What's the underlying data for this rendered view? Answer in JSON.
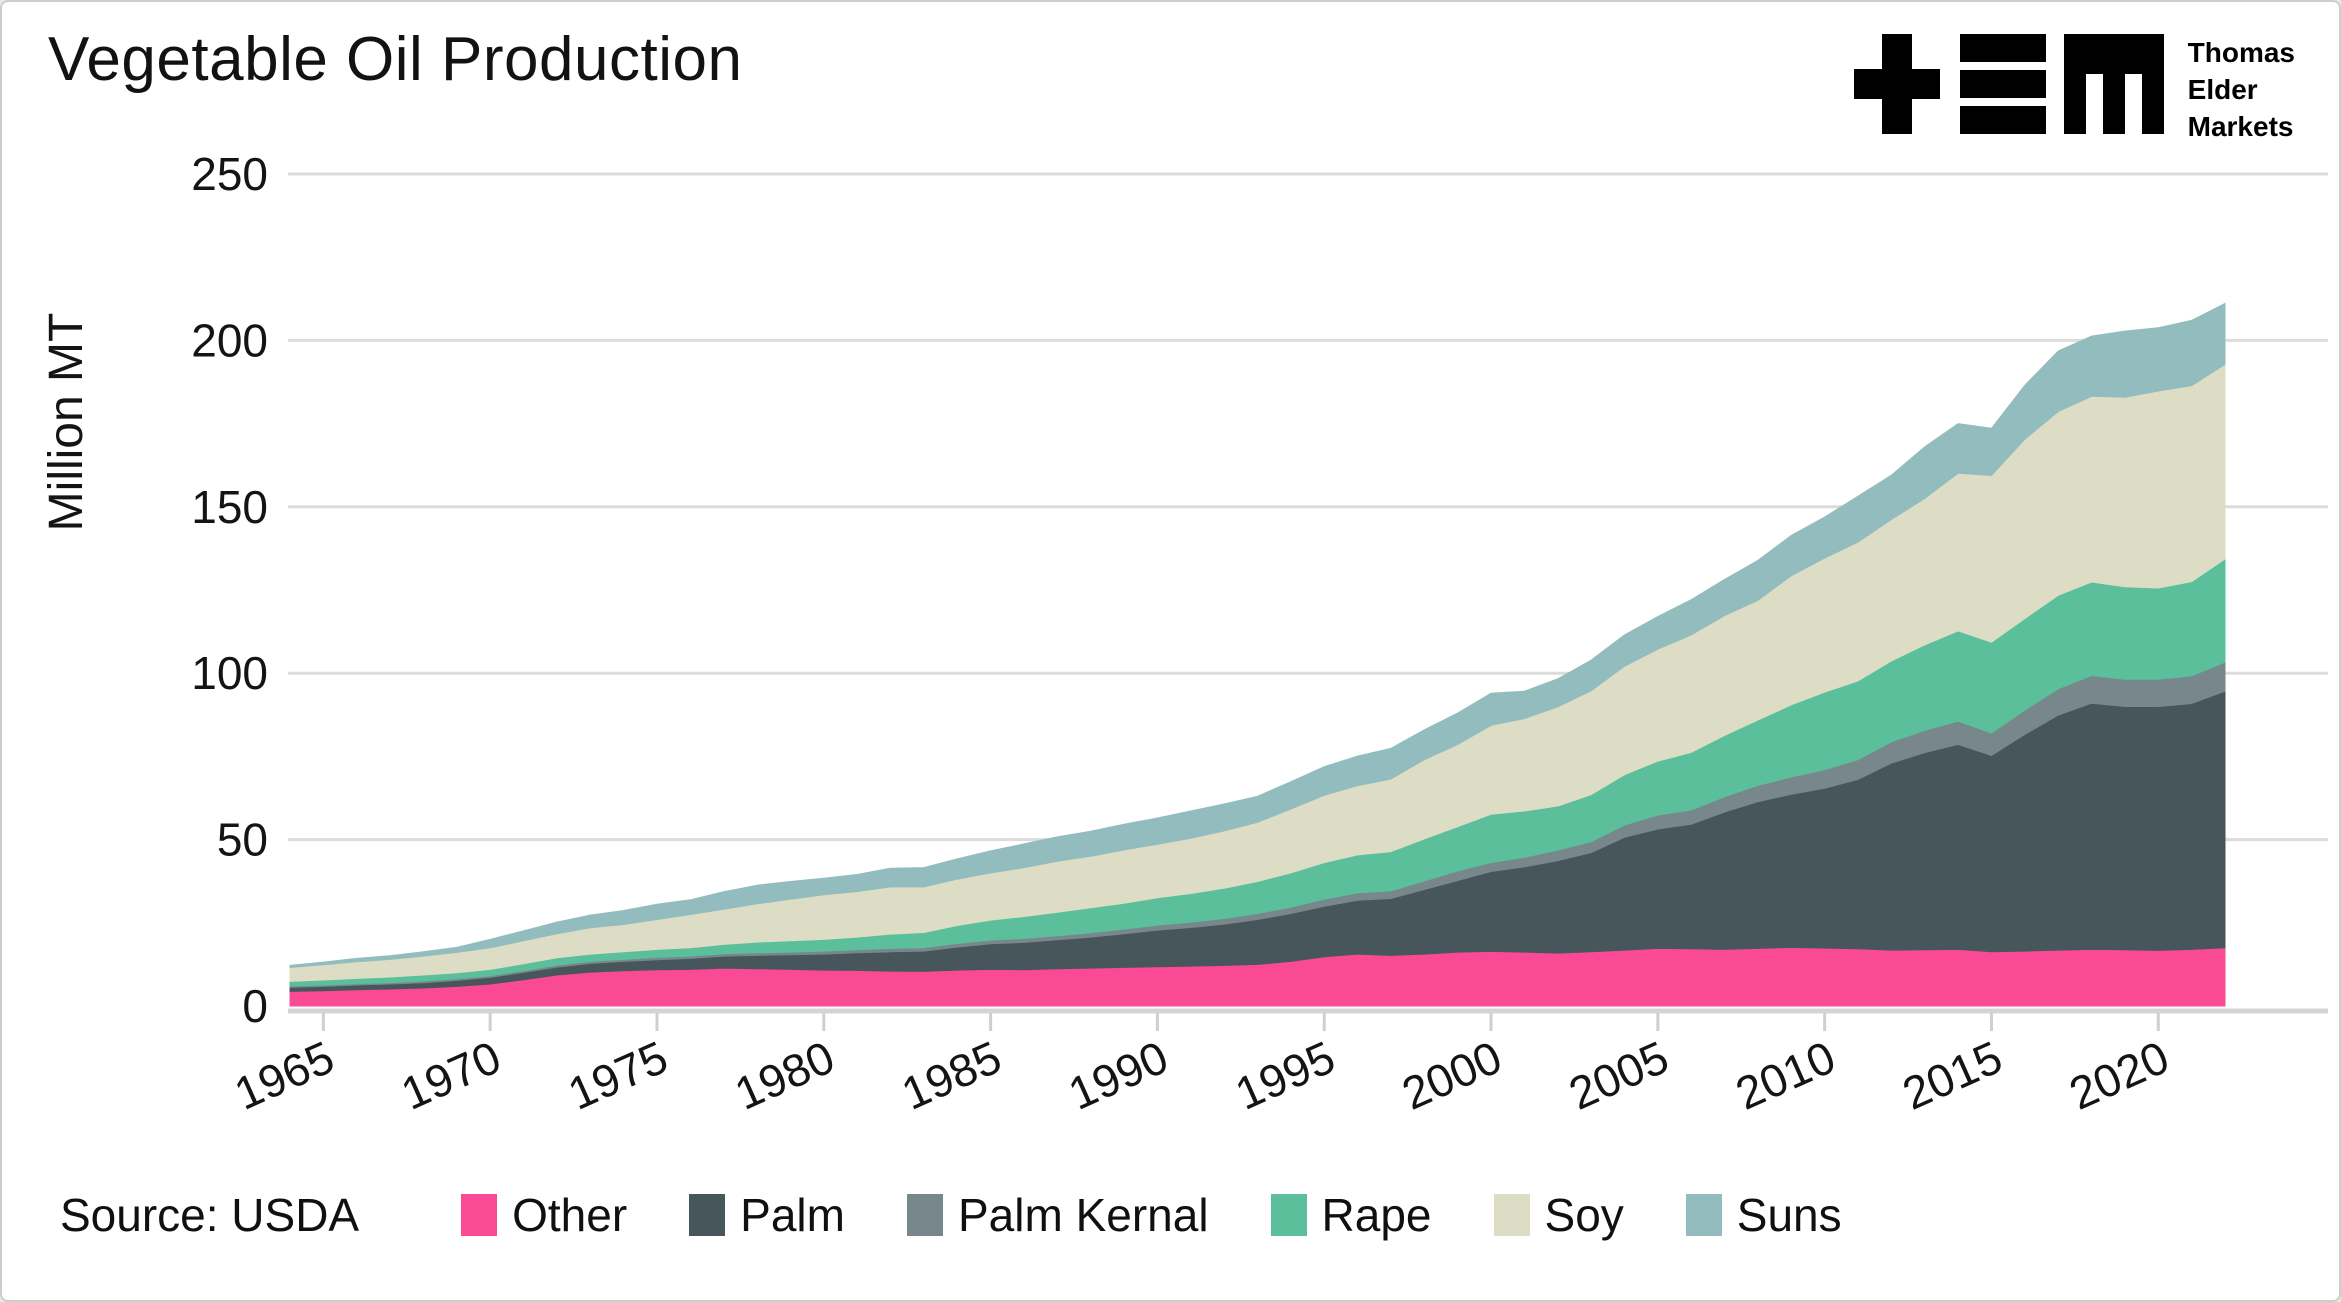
{
  "header": {
    "title": "Vegetable Oil Production"
  },
  "logo": {
    "company_lines": "Thomas\nElder\nMarkets",
    "icon": "tem-monogram-icon",
    "color": "#000000"
  },
  "footer": {
    "source_label": "Source: USDA"
  },
  "colors": {
    "background": "#ffffff",
    "grid": "#dcdcdc",
    "axis": "#d4d4d4",
    "tick": "#cfcfcf",
    "text": "#141414"
  },
  "chart_data": {
    "type": "area",
    "stacked": true,
    "title": "Vegetable Oil Production",
    "xlabel": "",
    "ylabel": "Million MT",
    "ylim": [
      0,
      250
    ],
    "yticks": [
      0,
      50,
      100,
      150,
      200,
      250
    ],
    "xticks": [
      1965,
      1970,
      1975,
      1980,
      1985,
      1990,
      1995,
      2000,
      2005,
      2010,
      2015,
      2020
    ],
    "grid": "horizontal",
    "legend_position": "bottom",
    "years": [
      1964,
      1965,
      1966,
      1967,
      1968,
      1969,
      1970,
      1971,
      1972,
      1973,
      1974,
      1975,
      1976,
      1977,
      1978,
      1979,
      1980,
      1981,
      1982,
      1983,
      1984,
      1985,
      1986,
      1987,
      1988,
      1989,
      1990,
      1991,
      1992,
      1993,
      1994,
      1995,
      1996,
      1997,
      1998,
      1999,
      2000,
      2001,
      2002,
      2003,
      2004,
      2005,
      2006,
      2007,
      2008,
      2009,
      2010,
      2011,
      2012,
      2013,
      2014,
      2015,
      2016,
      2017,
      2018,
      2019,
      2020,
      2021,
      2022
    ],
    "series": [
      {
        "name": "Other",
        "color": "#fa4a94",
        "values": [
          4.4,
          4.6,
          4.9,
          5.1,
          5.4,
          5.9,
          6.6,
          7.9,
          9.3,
          10.2,
          10.6,
          10.9,
          11.0,
          11.4,
          11.2,
          11.0,
          10.8,
          10.7,
          10.5,
          10.4,
          10.8,
          11.0,
          10.9,
          11.2,
          11.4,
          11.6,
          11.8,
          12.0,
          12.2,
          12.5,
          13.4,
          14.8,
          15.6,
          15.2,
          15.6,
          16.2,
          16.4,
          16.2,
          15.9,
          16.3,
          16.8,
          17.3,
          17.2,
          17.0,
          17.3,
          17.6,
          17.4,
          17.2,
          16.8,
          16.9,
          17.0,
          16.3,
          16.5,
          16.8,
          17.0,
          16.9,
          16.7,
          17.0,
          17.5
        ]
      },
      {
        "name": "Palm",
        "color": "#46565b",
        "values": [
          1.2,
          1.3,
          1.4,
          1.5,
          1.6,
          1.8,
          2.0,
          2.2,
          2.4,
          2.6,
          2.8,
          3.0,
          3.3,
          3.6,
          4.0,
          4.4,
          4.8,
          5.3,
          5.8,
          6.1,
          6.9,
          7.7,
          8.2,
          8.7,
          9.3,
          10.1,
          11.0,
          11.6,
          12.4,
          13.5,
          14.4,
          15.2,
          16.2,
          17.1,
          19.4,
          21.5,
          24.0,
          25.6,
          27.8,
          29.8,
          33.9,
          35.9,
          37.4,
          41.3,
          44.1,
          46.0,
          48.0,
          50.9,
          56.2,
          59.2,
          61.6,
          59.0,
          65.1,
          70.6,
          74.0,
          73.1,
          73.3,
          73.9,
          77.1
        ]
      },
      {
        "name": "Palm Kernal",
        "color": "#78878c",
        "values": [
          0.4,
          0.4,
          0.4,
          0.4,
          0.5,
          0.5,
          0.5,
          0.5,
          0.6,
          0.6,
          0.6,
          0.7,
          0.7,
          0.7,
          0.8,
          0.8,
          0.9,
          0.9,
          1.0,
          1.0,
          1.1,
          1.1,
          1.2,
          1.2,
          1.3,
          1.4,
          1.5,
          1.6,
          1.7,
          1.8,
          1.9,
          2.1,
          2.2,
          2.3,
          2.6,
          2.9,
          2.7,
          2.9,
          3.1,
          3.3,
          3.7,
          4.2,
          4.3,
          4.6,
          4.9,
          5.2,
          5.6,
          5.9,
          6.4,
          6.7,
          7.0,
          6.7,
          7.3,
          7.9,
          8.3,
          8.2,
          8.2,
          8.3,
          8.7
        ]
      },
      {
        "name": "Rape",
        "color": "#5abf9a",
        "values": [
          1.4,
          1.5,
          1.6,
          1.7,
          1.8,
          1.8,
          1.9,
          2.1,
          2.2,
          2.2,
          2.3,
          2.4,
          2.5,
          2.8,
          3.2,
          3.4,
          3.5,
          3.8,
          4.3,
          4.6,
          5.4,
          6.0,
          6.6,
          7.1,
          7.5,
          7.8,
          8.2,
          8.6,
          9.1,
          9.6,
          10.3,
          11.0,
          11.4,
          11.8,
          12.6,
          13.3,
          14.5,
          13.9,
          13.3,
          14.1,
          15.1,
          16.2,
          17.3,
          18.4,
          19.6,
          21.7,
          23.3,
          23.7,
          24.3,
          25.7,
          27.1,
          27.3,
          27.5,
          28.1,
          28.1,
          27.8,
          27.4,
          28.3,
          31.0
        ]
      },
      {
        "name": "Soy",
        "color": "#dddcc5",
        "values": [
          4.2,
          4.6,
          5.0,
          5.3,
          5.7,
          6.1,
          6.5,
          6.9,
          7.2,
          7.9,
          8.2,
          9.0,
          10.0,
          10.6,
          11.5,
          12.5,
          13.4,
          13.7,
          14.2,
          13.7,
          13.9,
          14.2,
          14.7,
          15.3,
          15.5,
          16.0,
          16.1,
          16.6,
          17.2,
          17.8,
          19.2,
          20.2,
          20.8,
          21.8,
          23.8,
          24.7,
          26.7,
          27.8,
          29.8,
          31.2,
          32.6,
          33.6,
          35.3,
          36.0,
          36.0,
          38.8,
          40.3,
          41.7,
          42.5,
          44.0,
          47.4,
          50.1,
          53.9,
          55.2,
          55.8,
          56.9,
          59.2,
          58.9,
          58.5
        ]
      },
      {
        "name": "Suns",
        "color": "#92bcbd",
        "values": [
          0.6,
          0.8,
          1.0,
          1.1,
          1.3,
          1.5,
          2.5,
          3.0,
          3.5,
          3.8,
          4.2,
          4.6,
          4.4,
          5.2,
          5.6,
          5.3,
          5.0,
          5.1,
          5.6,
          5.8,
          6.1,
          6.6,
          7.1,
          7.3,
          7.5,
          7.7,
          7.9,
          8.2,
          8.1,
          7.8,
          8.2,
          8.6,
          8.9,
          9.2,
          9.0,
          9.4,
          9.7,
          8.2,
          8.4,
          9.2,
          9.4,
          9.8,
          10.6,
          10.9,
          12.0,
          12.1,
          12.3,
          13.8,
          13.3,
          15.5,
          14.9,
          14.2,
          16.2,
          18.2,
          18.1,
          19.9,
          19.0,
          19.6,
          18.3
        ]
      }
    ]
  }
}
